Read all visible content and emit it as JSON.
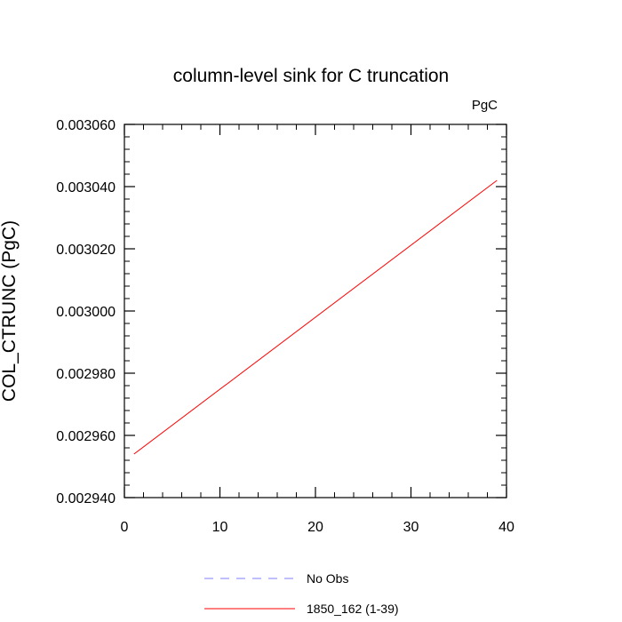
{
  "chart_data": {
    "type": "line",
    "title": "column-level sink for C truncation",
    "units_label": "PgC",
    "xlabel": "",
    "ylabel": "COL_CTRUNC  (PgC)",
    "xlim": [
      0,
      40
    ],
    "ylim": [
      0.00294,
      0.00306
    ],
    "x_ticks": [
      0,
      10,
      20,
      30,
      40
    ],
    "x_tick_labels": [
      "0",
      "10",
      "20",
      "30",
      "40"
    ],
    "y_ticks": [
      0.00294,
      0.00296,
      0.00298,
      0.003,
      0.00302,
      0.00304,
      0.00306
    ],
    "y_tick_labels": [
      "0.002940",
      "0.002960",
      "0.002980",
      "0.003000",
      "0.003020",
      "0.003040",
      "0.003060"
    ],
    "grid": false,
    "legend_position": "bottom",
    "series": [
      {
        "name": "No Obs",
        "color": "#7f7fff",
        "dash": "dashed",
        "x": [],
        "y": []
      },
      {
        "name": "1850_162 (1-39)",
        "color": "#ff0000",
        "dash": "solid",
        "x": [
          1,
          39
        ],
        "y": [
          0.002954,
          0.003042
        ]
      }
    ]
  }
}
